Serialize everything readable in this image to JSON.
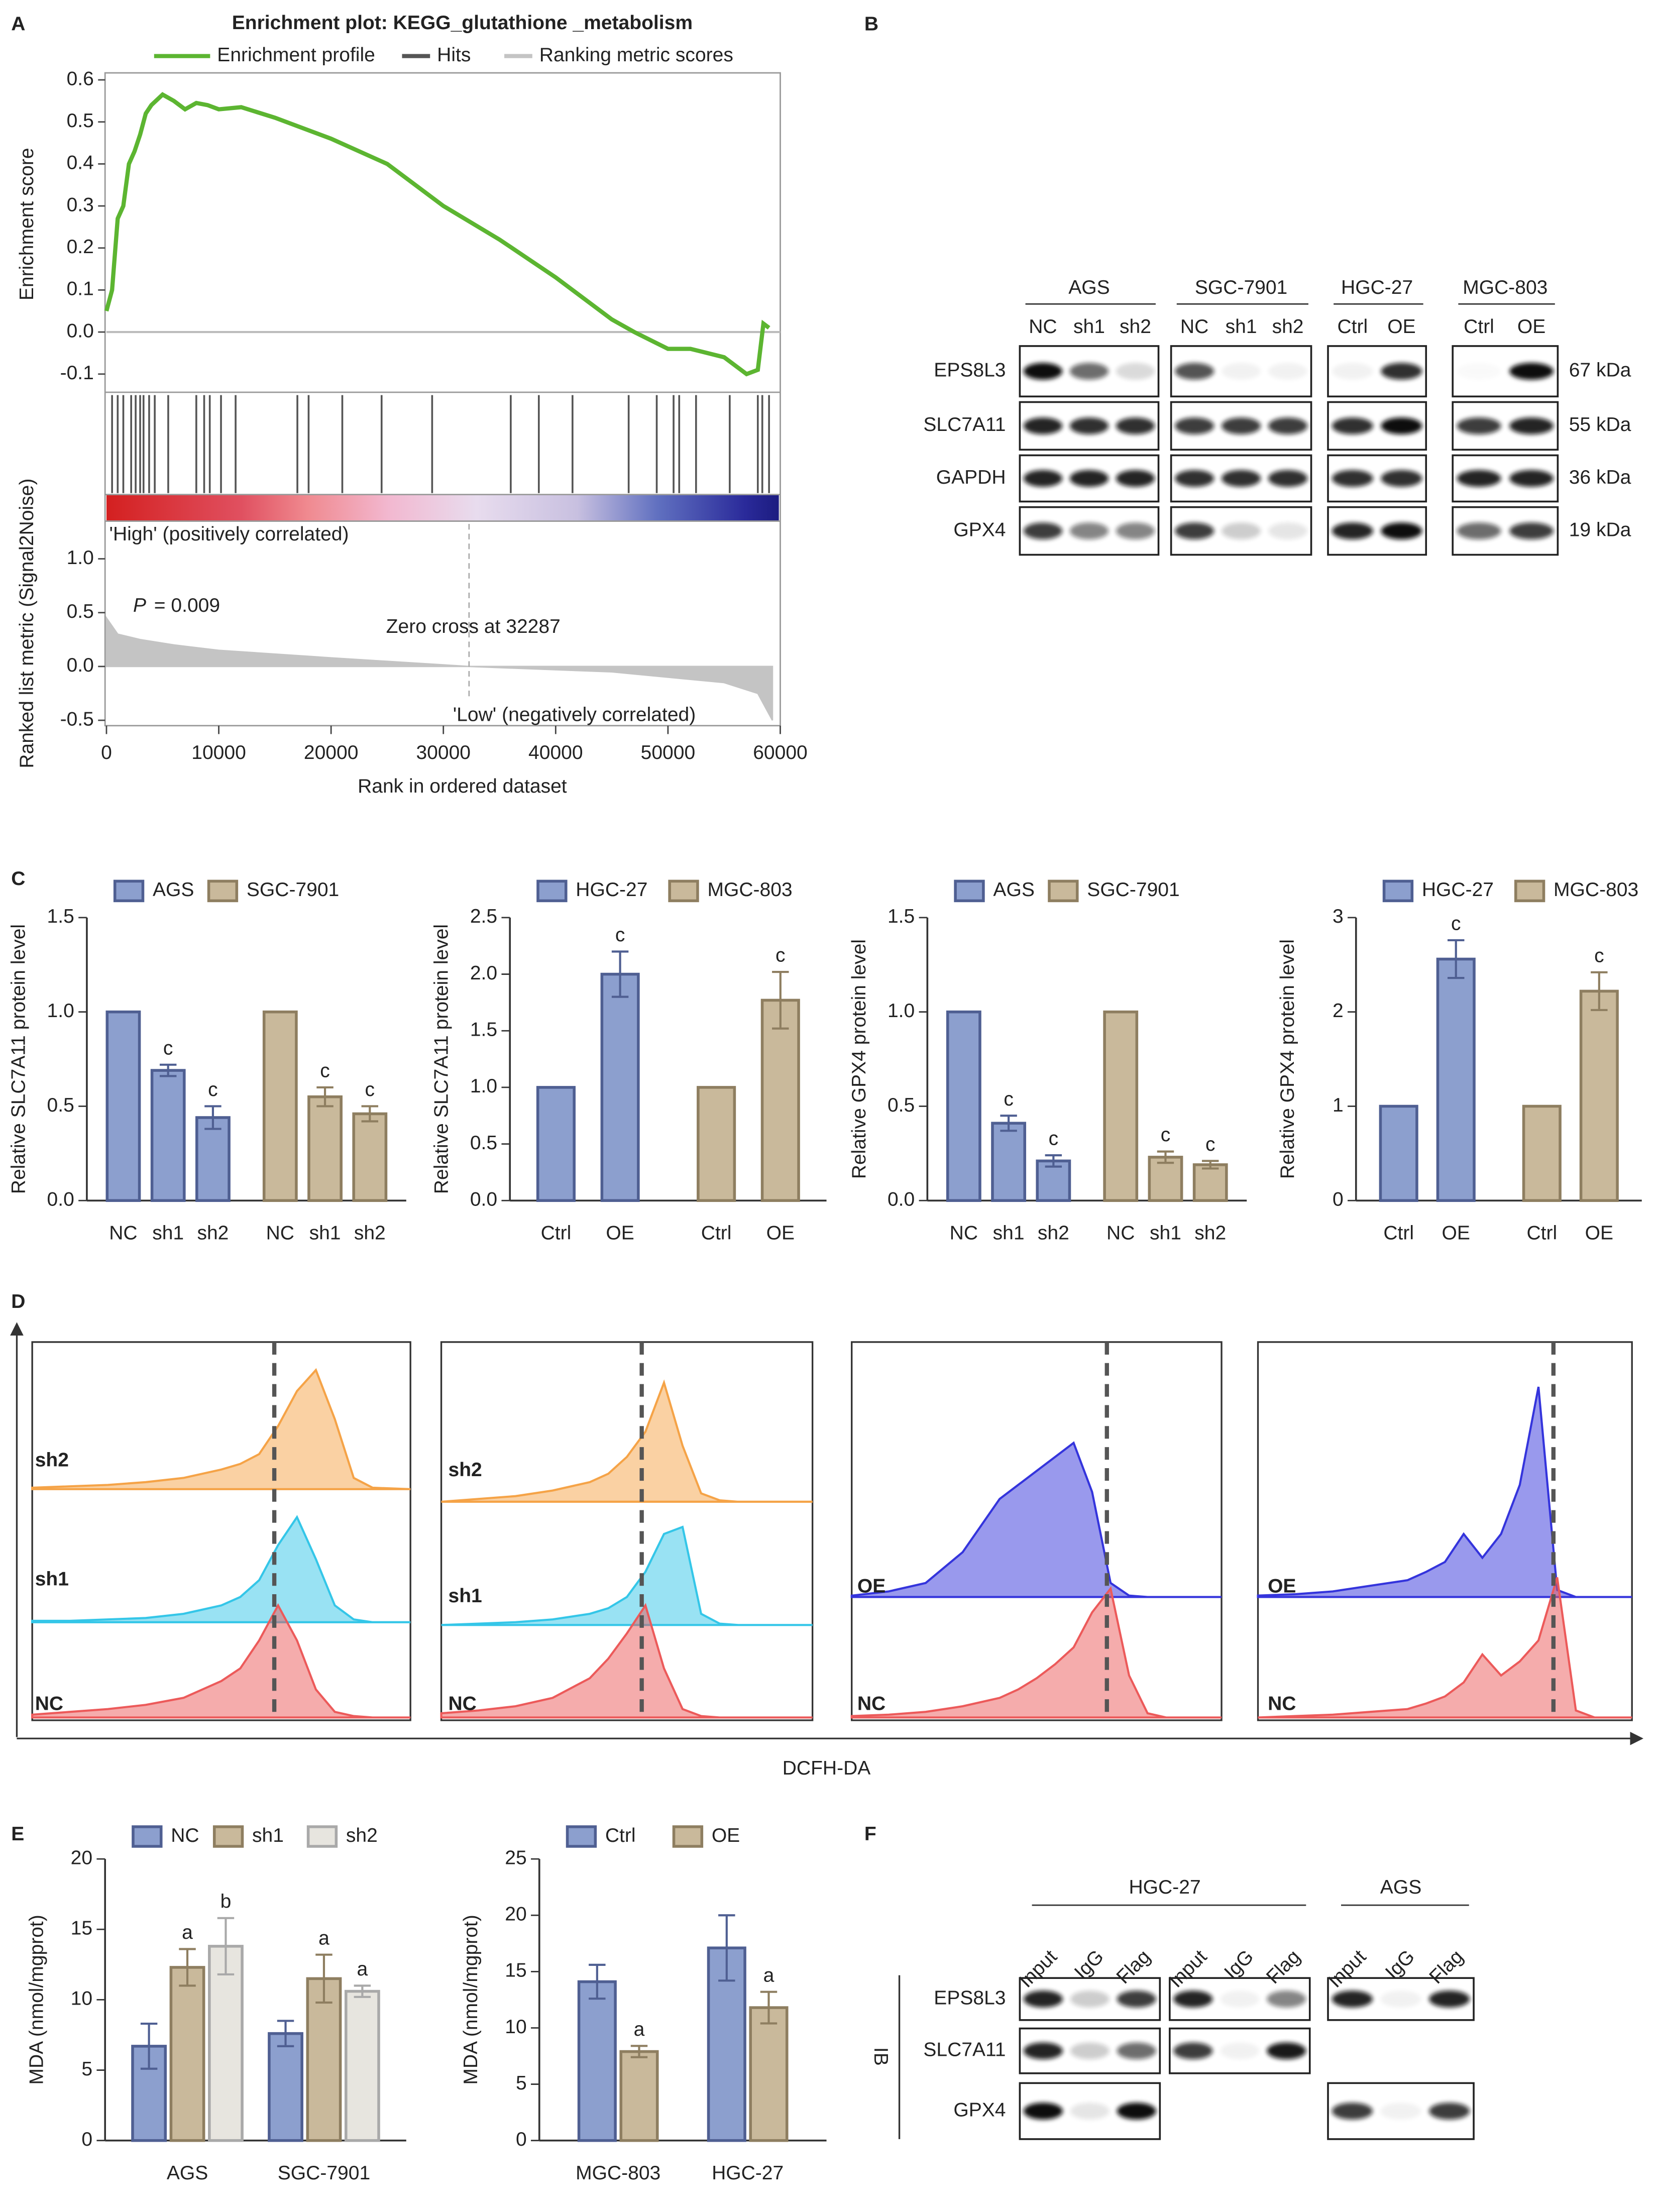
{
  "panels": [
    "A",
    "B",
    "C",
    "D",
    "E",
    "F"
  ],
  "chart_data": [
    {
      "type": "gsea",
      "title": "Enrichment plot: KEGG_glutathione _metabolism",
      "series": [
        {
          "name": "Enrichment profile",
          "color": "#5cb531",
          "x": [
            0,
            500,
            1000,
            1500,
            2000,
            2500,
            3000,
            3500,
            4000,
            5000,
            6000,
            7000,
            8000,
            9000,
            10000,
            12000,
            15000,
            20000,
            25000,
            30000,
            35000,
            40000,
            45000,
            47000,
            50000,
            52000,
            55000,
            57000,
            58000,
            58500,
            59000
          ],
          "values": [
            0.05,
            0.1,
            0.27,
            0.3,
            0.4,
            0.43,
            0.47,
            0.52,
            0.54,
            0.565,
            0.55,
            0.53,
            0.545,
            0.54,
            0.53,
            0.535,
            0.51,
            0.46,
            0.4,
            0.3,
            0.22,
            0.13,
            0.03,
            0.0,
            -0.04,
            -0.04,
            -0.06,
            -0.1,
            -0.09,
            0.02,
            0.01
          ]
        }
      ],
      "hits": {
        "name": "Hits",
        "color": "#555555",
        "x": [
          500,
          1000,
          1500,
          2200,
          2600,
          3000,
          3300,
          3800,
          4300,
          5500,
          8000,
          8700,
          9200,
          10200,
          11500,
          17000,
          18000,
          21000,
          24500,
          29000,
          36000,
          38500,
          41500,
          46500,
          49000,
          50500,
          51000,
          52500,
          55500,
          58000,
          58400,
          59000
        ]
      },
      "metric": {
        "name": "Ranking metric scores",
        "color": "#c4c4c4",
        "axis": "y2",
        "x": [
          0,
          1000,
          3000,
          6000,
          10000,
          20000,
          32287,
          45000,
          55000,
          58000,
          59300
        ],
        "values": [
          0.45,
          0.3,
          0.25,
          0.2,
          0.15,
          0.08,
          0,
          -0.05,
          -0.15,
          -0.25,
          -0.5
        ]
      },
      "xlim": [
        0,
        60000
      ],
      "xticks": [
        0,
        10000,
        20000,
        30000,
        40000,
        50000,
        60000
      ],
      "xlabel": "Rank in ordered dataset",
      "ylim": [
        -0.14,
        0.62
      ],
      "yticks": [
        -0.1,
        {
          "value": 0,
          "label": "0.0"
        },
        0.1,
        0.2,
        0.3,
        0.4,
        0.5,
        0.6
      ],
      "ylabel": "Enrichment score",
      "y2lim": [
        -0.55,
        1.35
      ],
      "y2ticks": [
        -0.5,
        {
          "value": 0,
          "label": "0.0"
        },
        0.5,
        {
          "value": 1,
          "label": "1.0"
        }
      ],
      "y2label": "Ranked list metric (Signal2Noise)",
      "high_label": "'High' (positively correlated)",
      "low_label": "'Low' (negatively correlated)",
      "zero_cross": 32287,
      "zero_cross_label": "Zero cross at 32287",
      "p_symbol": "P",
      "p_text": "= 0.009"
    },
    {
      "type": "bar",
      "categories": [
        "NC",
        "sh1",
        "sh2",
        "NC",
        "sh1",
        "sh2"
      ],
      "ylabel": "Relative SLC7A11 protein level",
      "ylim": [
        0,
        1.5
      ],
      "yticks": [
        {
          "value": 0,
          "label": "0.0"
        },
        0.5,
        {
          "value": 1,
          "label": "1.0"
        },
        1.5
      ],
      "series": [
        {
          "name": "AGS",
          "color": "#8c9fce",
          "edgecolor": "#4f5f92",
          "values": [
            1,
            0.69,
            0.44,
            null,
            null,
            null
          ],
          "errors": [
            null,
            0.03,
            0.06,
            null,
            null,
            null
          ],
          "labels": [
            null,
            "c",
            "c",
            null,
            null,
            null
          ]
        },
        {
          "name": "SGC-7901",
          "color": "#c9b99b",
          "edgecolor": "#8e7e60",
          "values": [
            null,
            null,
            null,
            1,
            0.55,
            0.46
          ],
          "errors": [
            null,
            null,
            null,
            null,
            0.05,
            0.04
          ],
          "labels": [
            null,
            null,
            null,
            null,
            "c",
            "c"
          ]
        }
      ]
    },
    {
      "type": "bar",
      "categories": [
        "Ctrl",
        "OE",
        "Ctrl",
        "OE"
      ],
      "ylabel": "Relative SLC7A11 protein level",
      "ylim": [
        0,
        2.5
      ],
      "yticks": [
        {
          "value": 0,
          "label": "0.0"
        },
        0.5,
        {
          "value": 1,
          "label": "1.0"
        },
        1.5,
        {
          "value": 2,
          "label": "2.0"
        },
        2.5
      ],
      "series": [
        {
          "name": "HGC-27",
          "color": "#8c9fce",
          "edgecolor": "#4f5f92",
          "values": [
            1,
            2.0,
            null,
            null
          ],
          "errors": [
            null,
            0.2,
            null,
            null
          ],
          "labels": [
            null,
            "c",
            null,
            null
          ]
        },
        {
          "name": "MGC-803",
          "color": "#c9b99b",
          "edgecolor": "#8e7e60",
          "values": [
            null,
            null,
            1,
            1.77
          ],
          "errors": [
            null,
            null,
            null,
            0.25
          ],
          "labels": [
            null,
            null,
            null,
            "c"
          ]
        }
      ]
    },
    {
      "type": "bar",
      "categories": [
        "NC",
        "sh1",
        "sh2",
        "NC",
        "sh1",
        "sh2"
      ],
      "ylabel": "Relative GPX4 protein level",
      "ylim": [
        0,
        1.5
      ],
      "yticks": [
        {
          "value": 0,
          "label": "0.0"
        },
        0.5,
        {
          "value": 1,
          "label": "1.0"
        },
        1.5
      ],
      "series": [
        {
          "name": "AGS",
          "color": "#8c9fce",
          "edgecolor": "#4f5f92",
          "values": [
            1,
            0.41,
            0.21,
            null,
            null,
            null
          ],
          "errors": [
            null,
            0.04,
            0.03,
            null,
            null,
            null
          ],
          "labels": [
            null,
            "c",
            "c",
            null,
            null,
            null
          ]
        },
        {
          "name": "SGC-7901",
          "color": "#c9b99b",
          "edgecolor": "#8e7e60",
          "values": [
            null,
            null,
            null,
            1,
            0.23,
            0.19
          ],
          "errors": [
            null,
            null,
            null,
            null,
            0.03,
            0.02
          ],
          "labels": [
            null,
            null,
            null,
            null,
            "c",
            "c"
          ]
        }
      ]
    },
    {
      "type": "bar",
      "categories": [
        "Ctrl",
        "OE",
        "Ctrl",
        "OE"
      ],
      "ylabel": "Relative GPX4 protein level",
      "ylim": [
        0,
        3
      ],
      "yticks": [
        0,
        1,
        2,
        3
      ],
      "series": [
        {
          "name": "HGC-27",
          "color": "#8c9fce",
          "edgecolor": "#4f5f92",
          "values": [
            1,
            2.56,
            null,
            null
          ],
          "errors": [
            null,
            0.2,
            null,
            null
          ],
          "labels": [
            null,
            "c",
            null,
            null
          ]
        },
        {
          "name": "MGC-803",
          "color": "#c9b99b",
          "edgecolor": "#8e7e60",
          "values": [
            null,
            null,
            1,
            2.22
          ],
          "errors": [
            null,
            null,
            null,
            0.2
          ],
          "labels": [
            null,
            null,
            null,
            "c"
          ]
        }
      ]
    },
    {
      "type": "ridgeline",
      "xlim": [
        0,
        100
      ],
      "reference_x": 64,
      "xlabel": "DCFH-DA",
      "x": [
        0,
        10,
        20,
        30,
        40,
        45,
        50,
        55,
        60,
        65,
        70,
        75,
        80,
        85,
        90,
        100
      ],
      "series": [
        {
          "name": "sh2",
          "color": "#f5a347",
          "values": [
            1,
            2,
            3,
            5,
            8,
            11,
            14,
            18,
            25,
            45,
            70,
            85,
            50,
            8,
            1,
            0
          ]
        },
        {
          "name": "sh1",
          "color": "#34c6e8",
          "values": [
            1,
            1,
            2,
            3,
            6,
            9,
            12,
            18,
            30,
            55,
            75,
            45,
            12,
            2,
            0,
            0
          ]
        },
        {
          "name": "NC",
          "color": "#ec5a5a",
          "values": [
            2,
            4,
            6,
            9,
            14,
            20,
            26,
            35,
            55,
            80,
            55,
            20,
            4,
            1,
            0,
            0
          ]
        }
      ]
    },
    {
      "type": "ridgeline",
      "xlim": [
        0,
        100
      ],
      "reference_x": 54,
      "x": [
        0,
        10,
        20,
        30,
        40,
        45,
        50,
        55,
        60,
        65,
        70,
        75,
        80,
        85,
        90,
        100
      ],
      "series": [
        {
          "name": "sh2",
          "color": "#f5a347",
          "values": [
            0,
            2,
            4,
            8,
            14,
            20,
            32,
            50,
            85,
            40,
            6,
            1,
            0,
            0,
            0,
            0
          ]
        },
        {
          "name": "sh1",
          "color": "#34c6e8",
          "values": [
            0,
            1,
            2,
            4,
            8,
            12,
            20,
            38,
            65,
            70,
            8,
            1,
            0,
            0,
            0,
            0
          ]
        },
        {
          "name": "NC",
          "color": "#ec5a5a",
          "values": [
            3,
            5,
            8,
            14,
            28,
            42,
            60,
            80,
            35,
            6,
            1,
            0,
            0,
            0,
            0,
            0
          ]
        }
      ]
    },
    {
      "type": "ridgeline",
      "xlim": [
        0,
        100
      ],
      "reference_x": 69,
      "x": [
        0,
        10,
        20,
        30,
        40,
        45,
        50,
        55,
        60,
        65,
        70,
        75,
        80,
        85,
        90,
        100
      ],
      "series": [
        {
          "name": "OE",
          "color": "#3434dc",
          "values": [
            1,
            4,
            10,
            32,
            70,
            80,
            90,
            100,
            110,
            75,
            10,
            1,
            0,
            0,
            0,
            0
          ]
        },
        {
          "name": "NC",
          "color": "#ec5a5a",
          "values": [
            1,
            2,
            4,
            8,
            14,
            20,
            28,
            38,
            50,
            75,
            92,
            30,
            3,
            0,
            0,
            0
          ]
        }
      ]
    },
    {
      "type": "ridgeline",
      "xlim": [
        0,
        100
      ],
      "reference_x": 79,
      "x": [
        0,
        10,
        20,
        30,
        40,
        45,
        50,
        55,
        60,
        65,
        70,
        75,
        80,
        85,
        90,
        100
      ],
      "series": [
        {
          "name": "OE",
          "color": "#3434dc",
          "values": [
            1,
            2,
            4,
            8,
            12,
            18,
            25,
            45,
            28,
            45,
            80,
            150,
            5,
            0,
            0,
            0
          ]
        },
        {
          "name": "NC",
          "color": "#ec5a5a",
          "values": [
            0,
            1,
            2,
            4,
            6,
            10,
            15,
            25,
            45,
            30,
            40,
            55,
            100,
            5,
            0,
            0
          ]
        }
      ]
    },
    {
      "type": "bar",
      "categories": [
        "AGS",
        "SGC-7901"
      ],
      "ylabel": "MDA (nmol/mgprot)",
      "ylim": [
        0,
        20
      ],
      "yticks": [
        0,
        5,
        10,
        15,
        20
      ],
      "series": [
        {
          "name": "NC",
          "color": "#8c9fce",
          "edgecolor": "#4f5f92",
          "values": [
            6.7,
            7.6
          ],
          "errors": [
            1.6,
            0.9
          ]
        },
        {
          "name": "sh1",
          "color": "#c9b99b",
          "edgecolor": "#8e7e60",
          "values": [
            12.3,
            11.5
          ],
          "errors": [
            1.3,
            1.7
          ],
          "labels": [
            "a",
            "a"
          ]
        },
        {
          "name": "sh2",
          "color": "#e7e5df",
          "edgecolor": "#a9a9a9",
          "values": [
            13.8,
            10.6
          ],
          "errors": [
            2.0,
            0.4
          ],
          "labels": [
            "b",
            "a"
          ]
        }
      ]
    },
    {
      "type": "bar",
      "categories": [
        "MGC-803",
        "HGC-27"
      ],
      "ylabel": "MDA (nmol/mgprot)",
      "ylim": [
        0,
        25
      ],
      "yticks": [
        0,
        5,
        10,
        15,
        20,
        25
      ],
      "series": [
        {
          "name": "Ctrl",
          "color": "#8c9fce",
          "edgecolor": "#4f5f92",
          "values": [
            14.1,
            17.1
          ],
          "errors": [
            1.5,
            2.9
          ]
        },
        {
          "name": "OE",
          "color": "#c9b99b",
          "edgecolor": "#8e7e60",
          "values": [
            7.9,
            11.8
          ],
          "errors": [
            0.5,
            1.4
          ],
          "labels": [
            "a",
            "a"
          ]
        }
      ]
    }
  ],
  "blot_b": {
    "lines": [
      {
        "name": "AGS",
        "lanes": [
          "NC",
          "sh1",
          "sh2"
        ]
      },
      {
        "name": "SGC-7901",
        "lanes": [
          "NC",
          "sh1",
          "sh2"
        ]
      },
      {
        "name": "HGC-27",
        "lanes": [
          "Ctrl",
          "OE"
        ]
      },
      {
        "name": "MGC-803",
        "lanes": [
          "Ctrl",
          "OE"
        ]
      }
    ],
    "proteins": [
      {
        "name": "EPS8L3",
        "size": "67 kDa"
      },
      {
        "name": "SLC7A11",
        "size": "55 kDa"
      },
      {
        "name": "GAPDH",
        "size": "36 kDa"
      },
      {
        "name": "GPX4",
        "size": "19 kDa"
      }
    ]
  },
  "blot_f": {
    "lines": [
      {
        "name": "HGC-27",
        "lanes": [
          "Input",
          "IgG",
          "Flag",
          "Input",
          "IgG",
          "Flag"
        ]
      },
      {
        "name": "AGS",
        "lanes": [
          "Input",
          "IgG",
          "Flag"
        ]
      }
    ],
    "method": "IB",
    "proteins": [
      "EPS8L3",
      "SLC7A11",
      "GPX4"
    ]
  }
}
